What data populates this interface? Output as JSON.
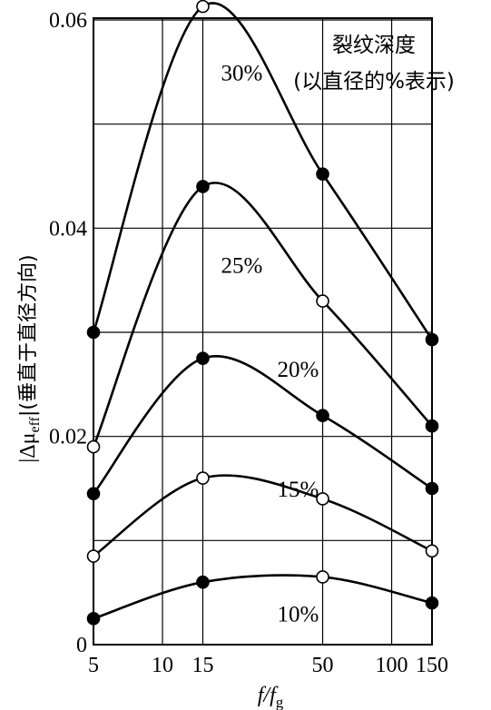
{
  "chart_data": {
    "type": "line",
    "title": "",
    "legend_title": [
      "裂纹深度",
      "(以直径的%表示)"
    ],
    "xlabel": {
      "main": "f/f",
      "sub": "g"
    },
    "ylabel": {
      "prefix": "|Δμ",
      "sub": "eff",
      "suffix": "|(垂直于直径方向)"
    },
    "x_scale": "log",
    "xlim": [
      5,
      150
    ],
    "ylim": [
      0,
      0.062
    ],
    "x_ticks": [
      5,
      10,
      15,
      50,
      100,
      150
    ],
    "x_tick_labels": [
      "5",
      "10",
      "15",
      "50",
      "100",
      "150"
    ],
    "y_ticks": [
      0,
      0.02,
      0.04,
      0.06
    ],
    "y_tick_labels": [
      "0",
      "0.02",
      "0.04",
      "0.06"
    ],
    "x_gridlines": [
      10,
      15,
      50,
      100
    ],
    "y_gridlines": [
      0.01,
      0.02,
      0.03,
      0.04,
      0.05,
      0.06
    ],
    "grid": true,
    "series": [
      {
        "name": "30%",
        "x": [
          5,
          15,
          50,
          150
        ],
        "y": [
          0.03,
          0.0613,
          0.0452,
          0.0293
        ],
        "markers": [
          "filled",
          "open",
          "filled",
          "filled"
        ]
      },
      {
        "name": "25%",
        "x": [
          5,
          15,
          50,
          150
        ],
        "y": [
          0.019,
          0.044,
          0.033,
          0.021
        ],
        "markers": [
          "open",
          "filled",
          "open",
          "filled"
        ]
      },
      {
        "name": "20%",
        "x": [
          5,
          15,
          50,
          150
        ],
        "y": [
          0.0145,
          0.0275,
          0.022,
          0.015
        ],
        "markers": [
          "filled",
          "filled",
          "filled",
          "filled"
        ]
      },
      {
        "name": "15%",
        "x": [
          5,
          15,
          50,
          150
        ],
        "y": [
          0.0085,
          0.016,
          0.014,
          0.009
        ],
        "markers": [
          "open",
          "open",
          "open",
          "open"
        ]
      },
      {
        "name": "10%",
        "x": [
          5,
          15,
          50,
          150
        ],
        "y": [
          0.0025,
          0.006,
          0.0065,
          0.004
        ],
        "markers": [
          "filled",
          "filled",
          "open",
          "filled"
        ]
      }
    ]
  }
}
